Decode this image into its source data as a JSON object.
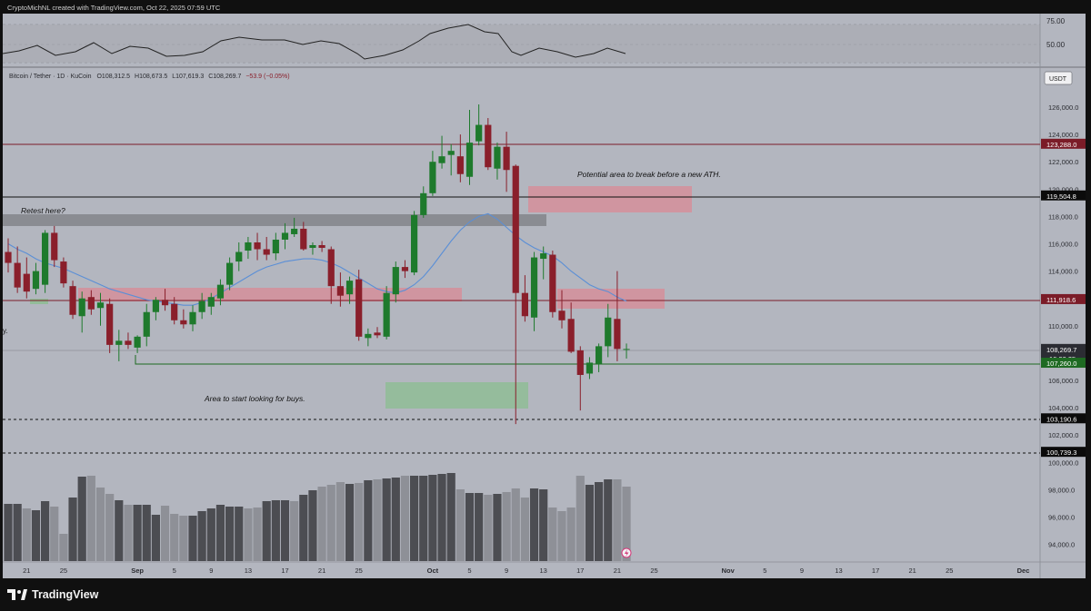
{
  "credit": "CryptoMichNL created with TradingView.com, Oct 22, 2025 07:59 UTC",
  "brand": "TradingView",
  "symbol": "Bitcoin / Tether · 1D · KuCoin",
  "ohlc": {
    "o": "O108,312.5",
    "h": "H108,673.5",
    "l": "L107,619.3",
    "c": "C108,269.7",
    "chg": "−53.9 (−0.05%)"
  },
  "currency": "USDT",
  "rsi": {
    "levels": [
      "75.00",
      "50.00"
    ]
  },
  "price_axis_ticks": [
    "126,000.0",
    "124,000.0",
    "122,000.0",
    "120,000.0",
    "118,000.0",
    "116,000.0",
    "114,000.0",
    "112,000.0",
    "110,000.0",
    "108,000.0",
    "106,000.0",
    "104,000.0",
    "102,000.0",
    "100,000.0",
    "98,000.0",
    "96,000.0",
    "94,000.0"
  ],
  "price_labels": [
    {
      "text": "123,288.0",
      "bg": "#7b1c28",
      "price": 123288
    },
    {
      "text": "119,504.8",
      "bg": "#0b0b0b",
      "price": 119504.8
    },
    {
      "text": "111,918.6",
      "bg": "#7b1c28",
      "price": 111918.6
    },
    {
      "text": "108,269.7",
      "countdown": "16:00:35",
      "bg": "#2b2c33",
      "price": 108269.7
    },
    {
      "text": "107,260.0",
      "bg": "#1e6a22",
      "price": 107260
    },
    {
      "text": "103,190.6",
      "bg": "#0b0b0b",
      "price": 103190.6
    },
    {
      "text": "100,739.3",
      "bg": "#0b0b0b",
      "price": 100739.3
    }
  ],
  "time_axis": [
    "21",
    "25",
    "Sep",
    "5",
    "9",
    "13",
    "17",
    "21",
    "25",
    "Oct",
    "5",
    "9",
    "13",
    "17",
    "21",
    "25",
    "Nov",
    "5",
    "9",
    "13",
    "17",
    "21",
    "25",
    "Dec"
  ],
  "annotations": {
    "retest": "Retest here?",
    "ath": "Potential area to break before a new ATH.",
    "buys": "Area to start looking for buys.",
    "left_edge": "y."
  },
  "colors": {
    "up": "#1e7a2c",
    "down": "#8a1f2b",
    "ma": "#5b8fd6",
    "zone_red": "#d98a96",
    "zone_green": "#8fbd95",
    "zone_gray": "#8a8c92",
    "frame": "#b3b6bf"
  },
  "chart_data": {
    "type": "candlestick",
    "title": "Bitcoin / Tether · 1D · KuCoin",
    "y_range": [
      93000,
      127200
    ],
    "x_ticks": [
      "21",
      "25",
      "Sep",
      "5",
      "9",
      "13",
      "17",
      "21",
      "25",
      "Oct",
      "5",
      "9",
      "13",
      "17",
      "21",
      "25",
      "Nov",
      "5",
      "9",
      "13",
      "17",
      "21",
      "25",
      "Dec"
    ],
    "candles": [
      {
        "o": 115400,
        "h": 116400,
        "l": 113900,
        "c": 114600
      },
      {
        "o": 114600,
        "h": 115800,
        "l": 112400,
        "c": 112800
      },
      {
        "o": 113800,
        "h": 115000,
        "l": 112000,
        "c": 112500
      },
      {
        "o": 112700,
        "h": 114600,
        "l": 112300,
        "c": 114000
      },
      {
        "o": 113000,
        "h": 117000,
        "l": 112400,
        "c": 116800
      },
      {
        "o": 116800,
        "h": 117300,
        "l": 114300,
        "c": 114800
      },
      {
        "o": 114700,
        "h": 115000,
        "l": 112800,
        "c": 113100
      },
      {
        "o": 112900,
        "h": 113300,
        "l": 110500,
        "c": 110800
      },
      {
        "o": 110700,
        "h": 112500,
        "l": 109500,
        "c": 112000
      },
      {
        "o": 112100,
        "h": 112600,
        "l": 110800,
        "c": 111200
      },
      {
        "o": 111300,
        "h": 112400,
        "l": 110000,
        "c": 111700
      },
      {
        "o": 111600,
        "h": 112000,
        "l": 108000,
        "c": 108600
      },
      {
        "o": 108600,
        "h": 109700,
        "l": 107400,
        "c": 108900
      },
      {
        "o": 108900,
        "h": 109500,
        "l": 108300,
        "c": 108600
      },
      {
        "o": 108400,
        "h": 109300,
        "l": 108000,
        "c": 109200
      },
      {
        "o": 109200,
        "h": 111600,
        "l": 108500,
        "c": 111000
      },
      {
        "o": 111000,
        "h": 112100,
        "l": 110400,
        "c": 111900
      },
      {
        "o": 111900,
        "h": 112700,
        "l": 111100,
        "c": 111500
      },
      {
        "o": 111600,
        "h": 112100,
        "l": 110100,
        "c": 110400
      },
      {
        "o": 110400,
        "h": 111200,
        "l": 109800,
        "c": 110100
      },
      {
        "o": 110100,
        "h": 111500,
        "l": 109600,
        "c": 111000
      },
      {
        "o": 111000,
        "h": 112400,
        "l": 110500,
        "c": 111800
      },
      {
        "o": 111400,
        "h": 112400,
        "l": 110800,
        "c": 112100
      },
      {
        "o": 112000,
        "h": 113400,
        "l": 111500,
        "c": 113000
      },
      {
        "o": 113000,
        "h": 115000,
        "l": 112600,
        "c": 114600
      },
      {
        "o": 114700,
        "h": 116100,
        "l": 114000,
        "c": 115400
      },
      {
        "o": 115500,
        "h": 116500,
        "l": 114900,
        "c": 116100
      },
      {
        "o": 116100,
        "h": 116800,
        "l": 114800,
        "c": 115600
      },
      {
        "o": 115600,
        "h": 116500,
        "l": 114800,
        "c": 115200
      },
      {
        "o": 115300,
        "h": 116800,
        "l": 114800,
        "c": 116300
      },
      {
        "o": 116300,
        "h": 117500,
        "l": 115600,
        "c": 116800
      },
      {
        "o": 116700,
        "h": 117900,
        "l": 116500,
        "c": 117100
      },
      {
        "o": 117100,
        "h": 117600,
        "l": 115500,
        "c": 115600
      },
      {
        "o": 115700,
        "h": 116100,
        "l": 115200,
        "c": 115900
      },
      {
        "o": 115900,
        "h": 116200,
        "l": 115400,
        "c": 115700
      },
      {
        "o": 115600,
        "h": 115800,
        "l": 111600,
        "c": 112900
      },
      {
        "o": 112900,
        "h": 113900,
        "l": 111400,
        "c": 112200
      },
      {
        "o": 112300,
        "h": 113600,
        "l": 111600,
        "c": 113300
      },
      {
        "o": 113400,
        "h": 114100,
        "l": 108900,
        "c": 109200
      },
      {
        "o": 109100,
        "h": 109800,
        "l": 108500,
        "c": 109400
      },
      {
        "o": 109500,
        "h": 109900,
        "l": 109100,
        "c": 109300
      },
      {
        "o": 109200,
        "h": 112900,
        "l": 109000,
        "c": 112400
      },
      {
        "o": 112300,
        "h": 114700,
        "l": 111700,
        "c": 114300
      },
      {
        "o": 114300,
        "h": 114800,
        "l": 113500,
        "c": 114000
      },
      {
        "o": 113900,
        "h": 118400,
        "l": 113700,
        "c": 118100
      },
      {
        "o": 118100,
        "h": 120200,
        "l": 117900,
        "c": 119700
      },
      {
        "o": 119700,
        "h": 122800,
        "l": 119500,
        "c": 122000
      },
      {
        "o": 121900,
        "h": 123900,
        "l": 121500,
        "c": 122400
      },
      {
        "o": 122500,
        "h": 123300,
        "l": 121000,
        "c": 122800
      },
      {
        "o": 122400,
        "h": 124000,
        "l": 120500,
        "c": 121100
      },
      {
        "o": 120900,
        "h": 125800,
        "l": 120300,
        "c": 123400
      },
      {
        "o": 123500,
        "h": 126200,
        "l": 123200,
        "c": 124700
      },
      {
        "o": 124700,
        "h": 125200,
        "l": 121400,
        "c": 121600
      },
      {
        "o": 121500,
        "h": 123400,
        "l": 120700,
        "c": 123100
      },
      {
        "o": 123100,
        "h": 124200,
        "l": 119800,
        "c": 121400
      },
      {
        "o": 121700,
        "h": 121800,
        "l": 102800,
        "c": 112400
      },
      {
        "o": 112400,
        "h": 113700,
        "l": 110300,
        "c": 110700
      },
      {
        "o": 110600,
        "h": 115400,
        "l": 109600,
        "c": 115000
      },
      {
        "o": 114900,
        "h": 115800,
        "l": 113400,
        "c": 115300
      },
      {
        "o": 115200,
        "h": 115500,
        "l": 110600,
        "c": 111000
      },
      {
        "o": 111100,
        "h": 112600,
        "l": 109800,
        "c": 110400
      },
      {
        "o": 110500,
        "h": 111700,
        "l": 108000,
        "c": 108100
      },
      {
        "o": 108200,
        "h": 108500,
        "l": 103800,
        "c": 106400
      },
      {
        "o": 106500,
        "h": 107700,
        "l": 106100,
        "c": 107300
      },
      {
        "o": 107200,
        "h": 108700,
        "l": 106600,
        "c": 108500
      },
      {
        "o": 108500,
        "h": 111600,
        "l": 107700,
        "c": 110600
      },
      {
        "o": 110500,
        "h": 114000,
        "l": 107400,
        "c": 108300
      },
      {
        "o": 108300,
        "h": 108700,
        "l": 107600,
        "c": 108300
      }
    ],
    "volume": [
      63,
      63,
      58,
      56,
      66,
      60,
      30,
      70,
      93,
      94,
      81,
      74,
      67,
      62,
      62,
      62,
      51,
      61,
      52,
      50,
      50,
      55,
      58,
      62,
      60,
      60,
      58,
      59,
      66,
      67,
      67,
      66,
      73,
      78,
      82,
      84,
      87,
      85,
      86,
      89,
      90,
      91,
      92,
      94,
      94,
      94,
      95,
      96,
      97,
      79,
      75,
      75,
      73,
      74,
      76,
      80,
      70,
      80,
      79,
      59,
      55,
      59,
      94,
      84,
      87,
      90,
      90,
      82
    ],
    "volume_up_flags": [
      1,
      1,
      0,
      1,
      1,
      0,
      0,
      1,
      1,
      0,
      0,
      0,
      1,
      0,
      1,
      1,
      1,
      0,
      0,
      0,
      1,
      1,
      1,
      1,
      1,
      1,
      0,
      0,
      1,
      1,
      1,
      0,
      1,
      1,
      0,
      0,
      0,
      1,
      0,
      1,
      0,
      1,
      1,
      0,
      1,
      1,
      1,
      1,
      1,
      0,
      1,
      1,
      0,
      1,
      0,
      0,
      0,
      1,
      1,
      0,
      0,
      0,
      0,
      1,
      1,
      1,
      0,
      0
    ],
    "ma20": [
      116000,
      115600,
      115300,
      114900,
      114600,
      114400,
      114200,
      113900,
      113600,
      113300,
      113000,
      112700,
      112500,
      112300,
      112100,
      111900,
      111800,
      111700,
      111600,
      111500,
      111500,
      111700,
      112000,
      112400,
      112800,
      113200,
      113600,
      114000,
      114300,
      114500,
      114700,
      114800,
      114900,
      114900,
      114800,
      114600,
      114300,
      113900,
      113500,
      113100,
      112700,
      112500,
      112400,
      112600,
      113000,
      113600,
      114400,
      115300,
      116200,
      117000,
      117600,
      118000,
      118200,
      117800,
      117200,
      116600,
      116100,
      115700,
      115400,
      115100,
      114600,
      114000,
      113500,
      113000,
      112700,
      112500,
      112100,
      111800
    ]
  }
}
